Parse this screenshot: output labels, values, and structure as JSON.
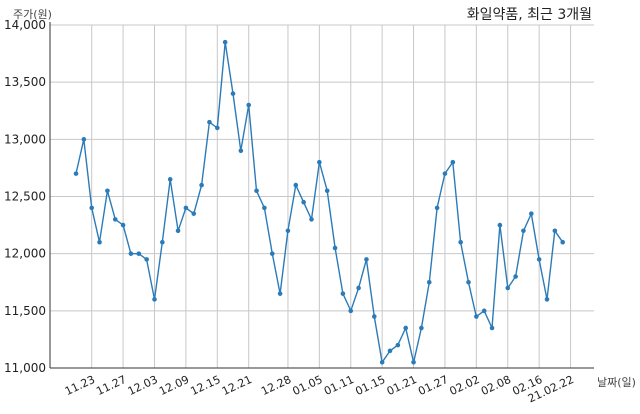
{
  "chart_data": {
    "type": "line",
    "title": "화일약품, 최근 3개월",
    "ylabel": "주가(원)",
    "xlabel": "날짜(일)",
    "ylim": [
      11000,
      14000
    ],
    "yticks": [
      11000,
      11500,
      12000,
      12500,
      13000,
      13500,
      14000
    ],
    "ytick_labels": [
      "11,000",
      "11,500",
      "12,000",
      "12,500",
      "13,000",
      "13,500",
      "14,000"
    ],
    "xtick_labels": [
      "11.23",
      "11.27",
      "12.03",
      "12.09",
      "12.15",
      "12.21",
      "12.28",
      "01.05",
      "01.11",
      "01.15",
      "01.21",
      "01.27",
      "02.02",
      "02.08",
      "02.16",
      "21.02.22"
    ],
    "xtick_index": [
      2,
      6,
      10,
      14,
      18,
      22,
      27,
      31,
      35,
      39,
      43,
      47,
      51,
      55,
      59,
      63
    ],
    "grid": true,
    "series": [
      {
        "color": "#2b7bb9",
        "values": [
          12700,
          13000,
          12400,
          12100,
          12550,
          12300,
          12250,
          12000,
          12000,
          11950,
          11600,
          12100,
          12650,
          12200,
          12400,
          12350,
          12600,
          13150,
          13100,
          13850,
          13400,
          12900,
          13300,
          12550,
          12400,
          12000,
          11650,
          12200,
          12600,
          12450,
          12300,
          12800,
          12550,
          12050,
          11650,
          11500,
          11700,
          11950,
          11450,
          11050,
          11150,
          11200,
          11350,
          11050,
          11350,
          11750,
          12400,
          12700,
          12800,
          12100,
          11750,
          11450,
          11500,
          11350,
          12250,
          11700,
          11800,
          12200,
          12350,
          11950,
          11600,
          12200,
          12100
        ]
      }
    ]
  }
}
